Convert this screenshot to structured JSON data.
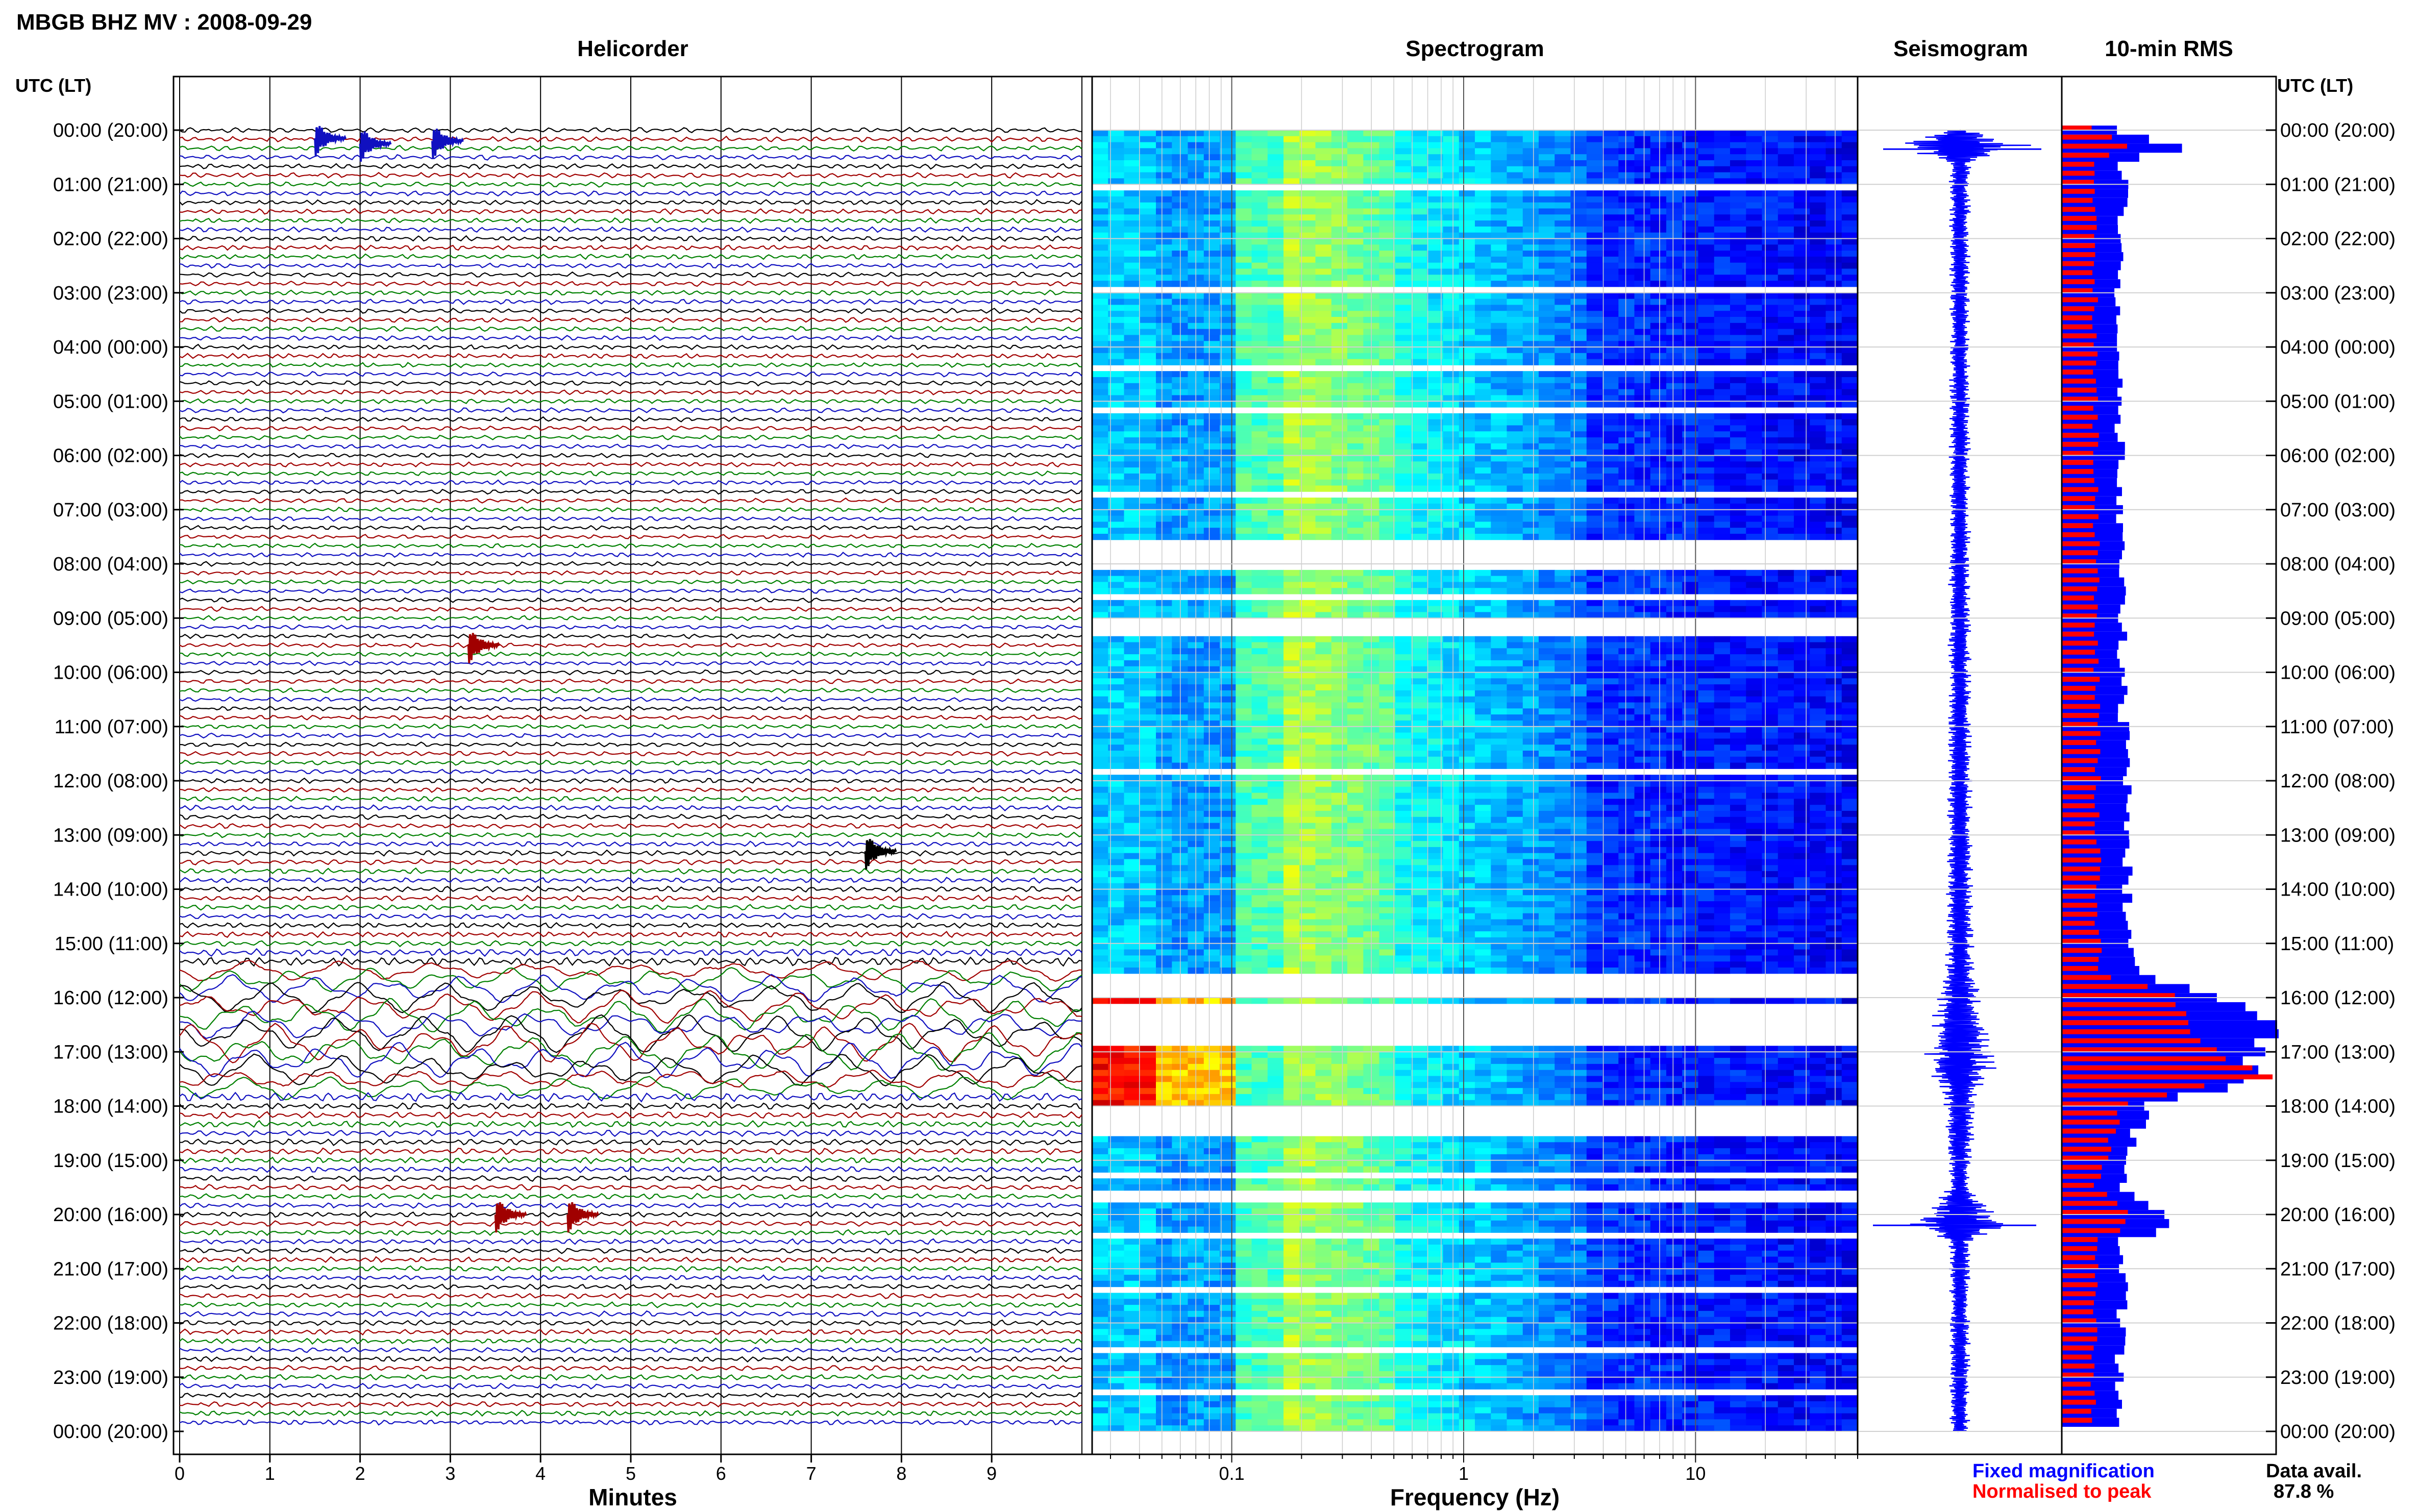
{
  "header": {
    "station_title": "MBGB BHZ MV : 2008-09-29",
    "axis_header_left": "UTC (LT)",
    "axis_header_right": "UTC (LT)"
  },
  "panels": {
    "helicorder": "Helicorder",
    "spectrogram": "Spectrogram",
    "seismogram": "Seismogram",
    "rms": "10-min RMS"
  },
  "time_labels": [
    "00:00 (20:00)",
    "01:00 (21:00)",
    "02:00 (22:00)",
    "03:00 (23:00)",
    "04:00 (00:00)",
    "05:00 (01:00)",
    "06:00 (02:00)",
    "07:00 (03:00)",
    "08:00 (04:00)",
    "09:00 (05:00)",
    "10:00 (06:00)",
    "11:00 (07:00)",
    "12:00 (08:00)",
    "13:00 (09:00)",
    "14:00 (10:00)",
    "15:00 (11:00)",
    "16:00 (12:00)",
    "17:00 (13:00)",
    "18:00 (14:00)",
    "19:00 (15:00)",
    "20:00 (16:00)",
    "21:00 (17:00)",
    "22:00 (18:00)",
    "23:00 (19:00)",
    "00:00 (20:00)"
  ],
  "footer": {
    "legend_fixed": "Fixed magnification",
    "legend_normalised": "Normalised to peak",
    "data_avail_label": "Data avail.",
    "data_avail_value": "87.8 %"
  },
  "colors": {
    "trace_black": "#000000",
    "trace_red": "#a00000",
    "trace_green": "#008000",
    "trace_blue": "#1010c0",
    "fixed_magnification": "#0000ff",
    "normalised_to_peak": "#ff0000"
  },
  "chart_data": [
    {
      "type": "line",
      "panel": "helicorder",
      "xlabel": "Minutes",
      "x_ticks": [
        "0",
        "1",
        "2",
        "3",
        "4",
        "5",
        "6",
        "7",
        "8",
        "9"
      ],
      "xlim": [
        0,
        10
      ],
      "rows_per_hour": 6,
      "hours": 24,
      "trace_color_cycle": [
        "trace_black",
        "trace_red",
        "trace_green",
        "trace_blue"
      ],
      "amplitude_profile": [
        {
          "hour": 0,
          "level": 1.0
        },
        {
          "hour": 4,
          "level": 0.9
        },
        {
          "hour": 8,
          "level": 0.8
        },
        {
          "hour": 12,
          "level": 0.9
        },
        {
          "hour": 15,
          "level": 1.1
        },
        {
          "hour": 16,
          "level": 3.0
        },
        {
          "hour": 17,
          "level": 4.0
        },
        {
          "hour": 18,
          "level": 1.3
        },
        {
          "hour": 20,
          "level": 1.0
        },
        {
          "hour": 24,
          "level": 1.0
        }
      ],
      "events": [
        {
          "hour": 0.15,
          "minute": 1.5,
          "color": "trace_blue"
        },
        {
          "hour": 0.2,
          "minute": 2.8,
          "color": "trace_blue"
        },
        {
          "hour": 0.25,
          "minute": 2.0,
          "color": "trace_blue"
        },
        {
          "hour": 9.5,
          "minute": 3.2,
          "color": "trace_red"
        },
        {
          "hour": 13.3,
          "minute": 7.6,
          "color": "trace_black"
        },
        {
          "hour": 20.0,
          "minute": 3.5,
          "color": "trace_red"
        },
        {
          "hour": 20.0,
          "minute": 4.3,
          "color": "trace_red"
        }
      ]
    },
    {
      "type": "heatmap",
      "panel": "spectrogram",
      "xlabel": "Frequency (Hz)",
      "x_scale": "log",
      "xlim": [
        0.025,
        50
      ],
      "x_ticks": [
        0.1,
        1,
        10
      ],
      "x_tick_labels": [
        "0.1",
        "1",
        "10"
      ],
      "ylim_hours": [
        0,
        24
      ],
      "colormap": "jet"
    },
    {
      "type": "line",
      "panel": "seismogram",
      "ylim_hours": [
        0,
        24
      ],
      "color": "fixed_magnification",
      "envelope": [
        {
          "hour": 0,
          "amp": 0.15
        },
        {
          "hour": 0.3,
          "amp": 1.0
        },
        {
          "hour": 0.6,
          "amp": 0.15
        },
        {
          "hour": 4,
          "amp": 0.14
        },
        {
          "hour": 8,
          "amp": 0.15
        },
        {
          "hour": 12,
          "amp": 0.17
        },
        {
          "hour": 15.5,
          "amp": 0.2
        },
        {
          "hour": 16,
          "amp": 0.3
        },
        {
          "hour": 16.5,
          "amp": 0.4
        },
        {
          "hour": 17.3,
          "amp": 0.5
        },
        {
          "hour": 17.7,
          "amp": 0.25
        },
        {
          "hour": 19.5,
          "amp": 0.15
        },
        {
          "hour": 20.2,
          "amp": 0.7
        },
        {
          "hour": 20.5,
          "amp": 0.15
        },
        {
          "hour": 24,
          "amp": 0.14
        }
      ]
    },
    {
      "type": "bar",
      "panel": "rms",
      "orientation": "horizontal",
      "bins_per_hour": 6,
      "series": [
        {
          "name": "Fixed magnification",
          "color": "fixed_magnification",
          "profile": [
            {
              "hour": 0,
              "value": 0.3
            },
            {
              "hour": 0.3,
              "value": 0.58
            },
            {
              "hour": 0.6,
              "value": 0.3
            },
            {
              "hour": 4,
              "value": 0.28
            },
            {
              "hour": 10,
              "value": 0.3
            },
            {
              "hour": 14,
              "value": 0.32
            },
            {
              "hour": 15.6,
              "value": 0.35
            },
            {
              "hour": 16,
              "value": 0.8
            },
            {
              "hour": 16.5,
              "value": 1.0
            },
            {
              "hour": 17.5,
              "value": 0.95
            },
            {
              "hour": 18,
              "value": 0.4
            },
            {
              "hour": 19.5,
              "value": 0.3
            },
            {
              "hour": 20.2,
              "value": 0.56
            },
            {
              "hour": 20.5,
              "value": 0.3
            },
            {
              "hour": 24,
              "value": 0.28
            }
          ]
        },
        {
          "name": "Normalised to peak",
          "color": "normalised_to_peak",
          "profile": [
            {
              "hour": 0,
              "value": 0.16
            },
            {
              "hour": 0.3,
              "value": 0.33
            },
            {
              "hour": 0.6,
              "value": 0.16
            },
            {
              "hour": 8,
              "value": 0.17
            },
            {
              "hour": 15.6,
              "value": 0.18
            },
            {
              "hour": 16,
              "value": 0.55
            },
            {
              "hour": 17,
              "value": 0.75
            },
            {
              "hour": 17.5,
              "value": 1.0
            },
            {
              "hour": 18,
              "value": 0.3
            },
            {
              "hour": 19.5,
              "value": 0.17
            },
            {
              "hour": 20.2,
              "value": 0.35
            },
            {
              "hour": 20.5,
              "value": 0.17
            },
            {
              "hour": 24,
              "value": 0.15
            }
          ]
        }
      ]
    }
  ]
}
